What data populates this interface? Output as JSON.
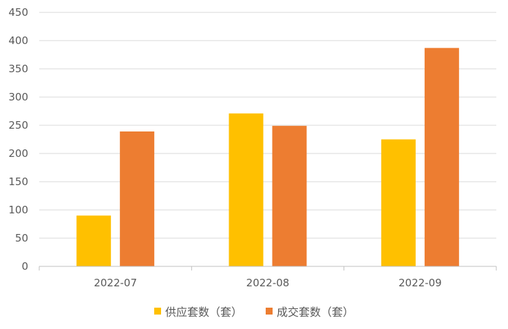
{
  "chart_data": {
    "type": "bar",
    "categories": [
      "2022-07",
      "2022-08",
      "2022-09"
    ],
    "series": [
      {
        "name": "供应套数（套）",
        "values": [
          90,
          271,
          225
        ],
        "color": "#FFC000"
      },
      {
        "name": "成交套数（套）",
        "values": [
          239,
          249,
          387
        ],
        "color": "#ED7D31"
      }
    ],
    "ylim": [
      0,
      450
    ],
    "yticks": [
      0,
      50,
      100,
      150,
      200,
      250,
      300,
      350,
      400,
      450
    ],
    "grid": true,
    "legend_position": "bottom"
  }
}
